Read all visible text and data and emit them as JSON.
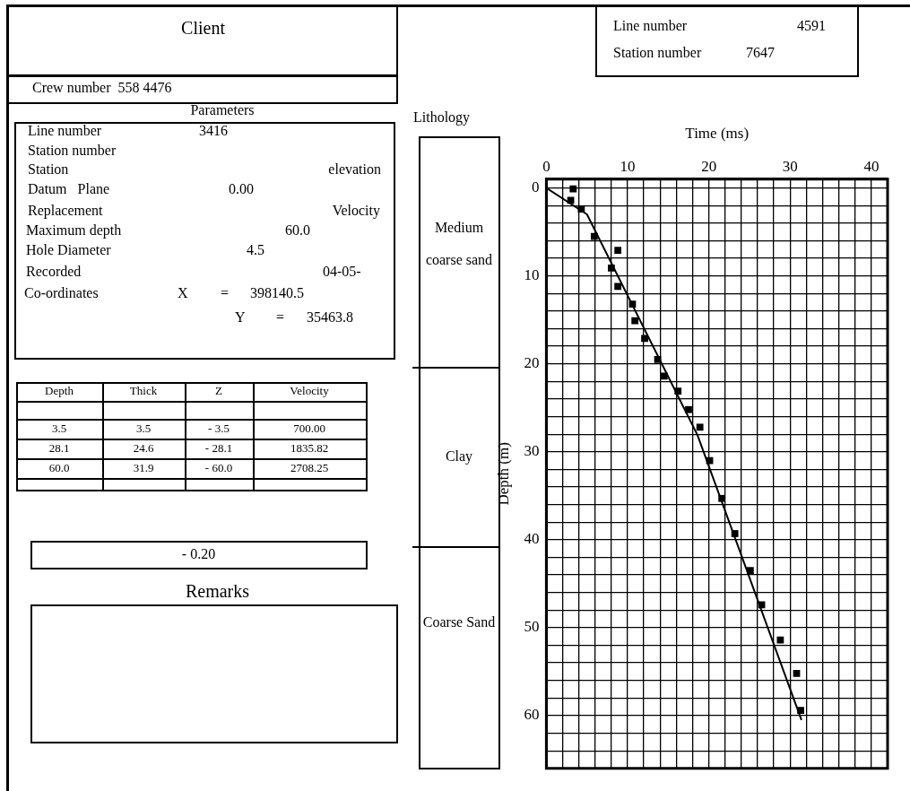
{
  "chart_data": [
    {
      "type": "other",
      "annotations": [
        "Client",
        "Crew number  558 4476",
        "Parameters",
        "Line number",
        "3416",
        "Station number",
        "Station",
        "elevation",
        "Datum   Plane",
        "0.00",
        "Replacement",
        "Velocity",
        "Maximum depth",
        "60.0",
        "Hole Diameter",
        "4.5",
        "Recorded",
        "04-05-",
        "Co-ordinates",
        "X",
        "=",
        "398140.5",
        "Y",
        "=",
        "35463.8",
        "Depth",
        "Thick",
        "Z",
        "Velocity",
        "3.5",
        "3.5",
        "- 3.5",
        "700.00",
        "28.1",
        "24.6",
        "- 28.1",
        "1835.82",
        "60.0",
        "31.9",
        "- 60.0",
        "2708.25",
        "- 0.20",
        "Remarks",
        "Line number",
        "4591",
        "Station number",
        "7647",
        "Lithology",
        "Medium coarse sand",
        "Clay",
        "Coarse Sand"
      ]
    },
    {
      "type": "scatter",
      "xlabel": "Time (ms)",
      "ylabel": "Depth (m)",
      "marker": "square",
      "grid": true,
      "xlim": [
        0,
        42
      ],
      "xticks": [
        0,
        {
          "value": 2,
          "label": null
        },
        {
          "value": 4,
          "label": null
        },
        {
          "value": 6,
          "label": null
        },
        {
          "value": 8,
          "label": null
        },
        10,
        {
          "value": 12,
          "label": null
        },
        {
          "value": 14,
          "label": null
        },
        {
          "value": 16,
          "label": null
        },
        {
          "value": 18,
          "label": null
        },
        20,
        {
          "value": 22,
          "label": null
        },
        {
          "value": 24,
          "label": null
        },
        {
          "value": 26,
          "label": null
        },
        {
          "value": 28,
          "label": null
        },
        30,
        {
          "value": 32,
          "label": null
        },
        {
          "value": 34,
          "label": null
        },
        {
          "value": 36,
          "label": null
        },
        {
          "value": 38,
          "label": null
        },
        40
      ],
      "ylim": [
        66,
        -1
      ],
      "yticks": [
        0,
        {
          "value": 2,
          "label": null
        },
        {
          "value": 4,
          "label": null
        },
        {
          "value": 6,
          "label": null
        },
        {
          "value": 8,
          "label": null
        },
        10,
        {
          "value": 12,
          "label": null
        },
        {
          "value": 14,
          "label": null
        },
        {
          "value": 16,
          "label": null
        },
        {
          "value": 18,
          "label": null
        },
        20,
        {
          "value": 22,
          "label": null
        },
        {
          "value": 24,
          "label": null
        },
        {
          "value": 26,
          "label": null
        },
        {
          "value": 28,
          "label": null
        },
        30,
        {
          "value": 32,
          "label": null
        },
        {
          "value": 34,
          "label": null
        },
        {
          "value": 36,
          "label": null
        },
        {
          "value": 38,
          "label": null
        },
        40,
        {
          "value": 42,
          "label": null
        },
        {
          "value": 44,
          "label": null
        },
        {
          "value": 46,
          "label": null
        },
        {
          "value": 48,
          "label": null
        },
        50,
        {
          "value": 52,
          "label": null
        },
        {
          "value": 54,
          "label": null
        },
        {
          "value": 56,
          "label": null
        },
        {
          "value": 58,
          "label": null
        },
        60,
        {
          "value": 62,
          "label": null
        },
        {
          "value": 64,
          "label": null
        }
      ],
      "series": [
        {
          "type": "scatter",
          "color": "#000000",
          "x": [
            3.3,
            3.0,
            4.3,
            5.9,
            8.8,
            8.0,
            8.8,
            10.6,
            10.9,
            12.1,
            13.7,
            14.5,
            16.2,
            17.5,
            18.9,
            20.1,
            21.6,
            23.2,
            25.1,
            26.5,
            28.8,
            30.8,
            31.3
          ],
          "values": [
            0.1,
            1.4,
            2.4,
            5.5,
            7.1,
            9.1,
            11.2,
            13.2,
            15.1,
            17.1,
            19.5,
            21.4,
            23.1,
            25.2,
            27.2,
            31.0,
            35.3,
            39.3,
            43.5,
            47.4,
            51.4,
            55.2,
            59.4
          ]
        },
        {
          "type": "line",
          "color": "#000000",
          "marker": "none",
          "line_style": "solid",
          "x": [
            0,
            5.0,
            18.6,
            31.4
          ],
          "values": [
            0,
            3.0,
            28.1,
            60.5
          ]
        }
      ]
    }
  ]
}
